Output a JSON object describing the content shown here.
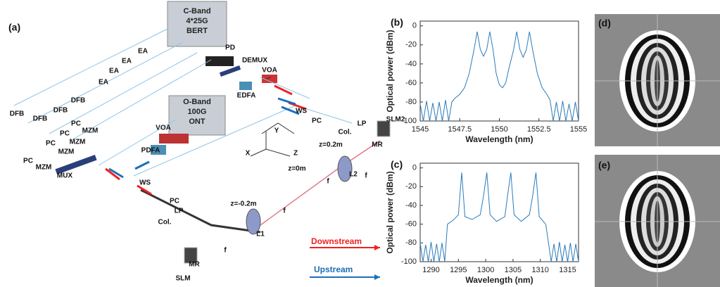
{
  "diagram": {
    "panel_label": "(a)",
    "bert": [
      "C-Band",
      "4*25G",
      "BERT"
    ],
    "ont": [
      "O-Band",
      "100G",
      "ONT"
    ],
    "labels": [
      "PD",
      "DEMUX",
      "VOA",
      "EDFA",
      "EA",
      "EA",
      "EA",
      "EA",
      "DFB",
      "DFB",
      "DFB",
      "DFB",
      "PC",
      "PC",
      "PC",
      "PC",
      "MZM",
      "MZM",
      "MZM",
      "MZM",
      "MUX",
      "VOA",
      "PDFA",
      "WS",
      "WS",
      "PC",
      "PC",
      "Col.",
      "Col.",
      "LP",
      "LP",
      "MR",
      "MR",
      "SLM2",
      "SLM",
      "L2",
      "L1",
      "z=0.2m",
      "z=0m",
      "z=-0.2m",
      "f",
      "f",
      "f",
      "f",
      "X",
      "Y",
      "Z"
    ],
    "legend": [
      "Downstream",
      "Upstream"
    ]
  },
  "chart_data": [
    {
      "type": "line",
      "panel_label": "(b)",
      "x_label": "Wavelength (nm)",
      "y_label": "Optical power (dBm)",
      "color": "#2b7bba",
      "x": [
        1545,
        1545.2,
        1545.4,
        1545.6,
        1545.8,
        1546,
        1546.2,
        1546.4,
        1546.6,
        1546.8,
        1547,
        1547.2,
        1547.5,
        1547.8,
        1548.1,
        1548.4,
        1548.6,
        1548.8,
        1549.0,
        1549.2,
        1549.4,
        1549.6,
        1549.8,
        1550.0,
        1550.2,
        1550.4,
        1550.6,
        1550.9,
        1551.1,
        1551.3,
        1551.5,
        1551.7,
        1551.9,
        1552.1,
        1552.4,
        1552.7,
        1553.0,
        1553.2,
        1553.4,
        1553.6,
        1553.8,
        1554,
        1554.2,
        1554.4,
        1554.6,
        1554.8,
        1555
      ],
      "values": [
        -82,
        -100,
        -79,
        -100,
        -81,
        -100,
        -80,
        -100,
        -78,
        -100,
        -80,
        -76,
        -72,
        -65,
        -50,
        -25,
        -6,
        -25,
        -32,
        -25,
        -6,
        -25,
        -50,
        -62,
        -65,
        -60,
        -45,
        -25,
        -6,
        -25,
        -33,
        -25,
        -6,
        -25,
        -50,
        -65,
        -72,
        -78,
        -100,
        -80,
        -100,
        -79,
        -100,
        -82,
        -100,
        -80,
        -100
      ],
      "xlim": [
        1545,
        1555
      ],
      "xticks": [
        1545,
        1547.5,
        1550,
        1552.5,
        1555
      ],
      "ylim": [
        -100,
        5
      ],
      "yticks": [
        -100,
        -80,
        -60,
        -40,
        -20,
        0
      ]
    },
    {
      "type": "line",
      "panel_label": "(c)",
      "x_label": "Wavelength (nm)",
      "y_label": "Optical power (dBm)",
      "color": "#2b7bba",
      "x": [
        1288,
        1288.5,
        1289,
        1289.5,
        1290,
        1290.5,
        1291,
        1291.5,
        1292,
        1292.5,
        1293,
        1294,
        1295,
        1295.6,
        1296.2,
        1297.5,
        1299,
        1299.6,
        1300.2,
        1300.8,
        1302,
        1303.5,
        1304,
        1304.6,
        1305.2,
        1306.5,
        1308,
        1308.6,
        1309.2,
        1309.8,
        1311,
        1311.5,
        1312,
        1312.5,
        1313,
        1313.5,
        1314,
        1314.5,
        1315,
        1315.5,
        1316,
        1316.5,
        1317
      ],
      "values": [
        -80,
        -100,
        -82,
        -100,
        -79,
        -100,
        -81,
        -100,
        -80,
        -100,
        -60,
        -56,
        -50,
        -5,
        -52,
        -55,
        -50,
        -30,
        -5,
        -50,
        -57,
        -52,
        -30,
        -5,
        -50,
        -57,
        -50,
        -30,
        -5,
        -52,
        -60,
        -80,
        -100,
        -81,
        -100,
        -79,
        -100,
        -82,
        -100,
        -80,
        -100,
        -81,
        -100
      ],
      "xlim": [
        1288,
        1317
      ],
      "xticks": [
        1290,
        1295,
        1300,
        1305,
        1310,
        1315
      ],
      "ylim": [
        -100,
        5
      ],
      "yticks": [
        -100,
        -80,
        -60,
        -40,
        -20,
        0
      ]
    }
  ],
  "images": [
    "(d)",
    "(e)"
  ]
}
